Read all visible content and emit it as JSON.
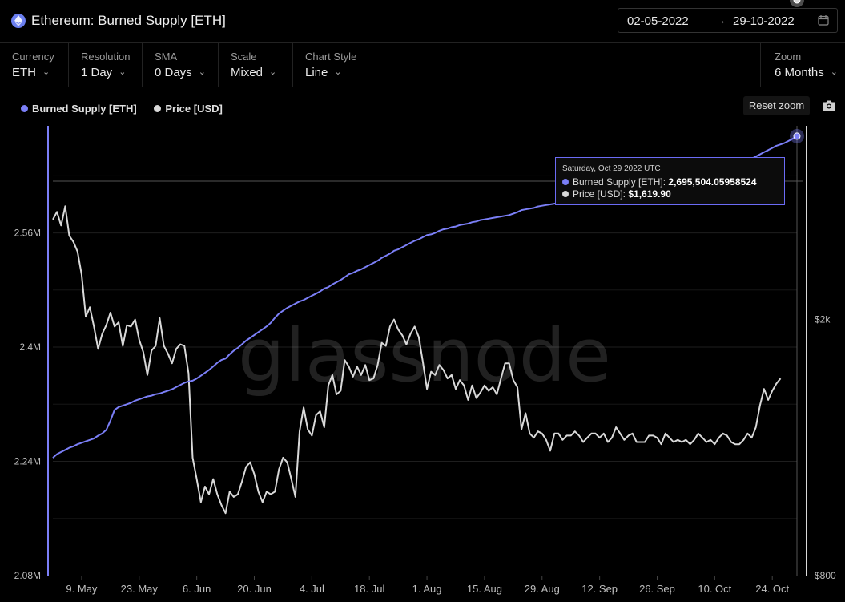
{
  "header": {
    "title": "Ethereum: Burned Supply [ETH]",
    "date_from": "02-05-2022",
    "date_arrow": "→",
    "date_to": "29-10-2022"
  },
  "controls": [
    {
      "label": "Currency",
      "value": "ETH"
    },
    {
      "label": "Resolution",
      "value": "1 Day"
    },
    {
      "label": "SMA",
      "value": "0 Days"
    },
    {
      "label": "Scale",
      "value": "Mixed"
    },
    {
      "label": "Chart Style",
      "value": "Line"
    }
  ],
  "zoom": {
    "label": "Zoom",
    "value": "6 Months"
  },
  "reset_zoom": "Reset zoom",
  "watermark": "glassnode",
  "tooltip": {
    "date": "Saturday, Oct 29 2022 UTC",
    "row1_label": "Burned Supply [ETH]:",
    "row1_value": "2,695,504.05958524",
    "row2_label": "Price [USD]:",
    "row2_value": "$1,619.90"
  },
  "colors": {
    "burned": "#7b7ff7",
    "price": "#d9d9d9",
    "background": "#000000",
    "grid": "#1e1e1e"
  },
  "chart_data": {
    "type": "line",
    "legend_position": "top-left",
    "grid": true,
    "x_ticks": [
      "9. May",
      "23. May",
      "6. Jun",
      "20. Jun",
      "4. Jul",
      "18. Jul",
      "1. Aug",
      "15. Aug",
      "29. Aug",
      "12. Sep",
      "26. Sep",
      "10. Oct",
      "24. Oct"
    ],
    "y_left": {
      "ticks": [
        "2.08M",
        "2.24M",
        "2.4M",
        "2.56M"
      ],
      "range": [
        2080000,
        2710000
      ]
    },
    "y_right": {
      "ticks": [
        "$800",
        "$2k"
      ],
      "scale": "log",
      "range": [
        800,
        4000
      ]
    },
    "series": [
      {
        "name": "Burned Supply [ETH]",
        "axis": "left",
        "start_date": "2022-05-02",
        "values": [
          2245000,
          2250000,
          2253000,
          2256000,
          2259000,
          2261000,
          2264000,
          2266000,
          2268000,
          2270000,
          2272000,
          2276000,
          2279000,
          2284000,
          2297000,
          2312000,
          2316000,
          2318000,
          2320000,
          2322000,
          2325000,
          2327000,
          2329000,
          2331000,
          2332000,
          2334000,
          2335000,
          2337000,
          2339000,
          2341000,
          2344000,
          2347000,
          2350000,
          2352000,
          2353000,
          2356000,
          2360000,
          2364000,
          2368000,
          2373000,
          2378000,
          2382000,
          2384000,
          2390000,
          2395000,
          2399000,
          2404000,
          2409000,
          2413000,
          2417000,
          2421000,
          2425000,
          2429000,
          2434000,
          2441000,
          2447000,
          2451000,
          2455000,
          2458000,
          2461000,
          2464000,
          2466000,
          2469000,
          2472000,
          2475000,
          2478000,
          2482000,
          2484000,
          2488000,
          2491000,
          2494000,
          2498000,
          2502000,
          2504000,
          2507000,
          2509000,
          2512000,
          2515000,
          2518000,
          2521000,
          2525000,
          2528000,
          2531000,
          2535000,
          2537000,
          2540000,
          2543000,
          2546000,
          2549000,
          2551000,
          2554000,
          2557000,
          2558000,
          2560000,
          2563000,
          2565000,
          2566000,
          2568000,
          2569000,
          2571000,
          2572000,
          2573000,
          2575000,
          2576000,
          2578000,
          2579000,
          2580000,
          2581000,
          2582000,
          2583000,
          2584000,
          2585000,
          2587000,
          2589000,
          2592000,
          2593000,
          2594000,
          2595000,
          2597000,
          2598000,
          2599000,
          2600000,
          2601000,
          2602000,
          2604000,
          2605000,
          2606000,
          2607000,
          2608000,
          2609000,
          2610000,
          2611000,
          2612000,
          2614000,
          2615000,
          2616000,
          2618000,
          2620000,
          2624000,
          2627000,
          2629000,
          2632000,
          2634000,
          2636000,
          2638000,
          2640000,
          2641000,
          2643000,
          2644000,
          2645000,
          2646000,
          2647000,
          2648000,
          2648500,
          2649000,
          2649500,
          2650000,
          2650500,
          2651000,
          2651500,
          2652000,
          2653000,
          2653500,
          2654000,
          2655000,
          2656000,
          2657000,
          2658000,
          2660000,
          2662000,
          2664000,
          2667000,
          2670000,
          2673000,
          2676000,
          2679000,
          2682000,
          2684000,
          2686000,
          2689000,
          2692000,
          2695504
        ]
      },
      {
        "name": "Price [USD]",
        "axis": "right",
        "start_date": "2022-05-02",
        "values": [
          2860,
          2940,
          2800,
          3000,
          2700,
          2640,
          2550,
          2350,
          2020,
          2090,
          1950,
          1800,
          1900,
          1960,
          2050,
          1950,
          1980,
          1820,
          1960,
          1950,
          2000,
          1860,
          1780,
          1640,
          1790,
          1820,
          2010,
          1820,
          1770,
          1710,
          1800,
          1830,
          1820,
          1650,
          1220,
          1130,
          1040,
          1100,
          1070,
          1130,
          1070,
          1030,
          1000,
          1080,
          1060,
          1070,
          1120,
          1180,
          1200,
          1150,
          1080,
          1040,
          1080,
          1070,
          1080,
          1170,
          1220,
          1200,
          1130,
          1060,
          1340,
          1460,
          1350,
          1320,
          1420,
          1440,
          1360,
          1580,
          1640,
          1530,
          1550,
          1730,
          1690,
          1630,
          1690,
          1640,
          1700,
          1610,
          1620,
          1700,
          1840,
          1820,
          1950,
          2000,
          1930,
          1890,
          1830,
          1900,
          1950,
          1880,
          1720,
          1560,
          1660,
          1640,
          1700,
          1670,
          1620,
          1640,
          1560,
          1610,
          1580,
          1500,
          1580,
          1510,
          1540,
          1580,
          1550,
          1570,
          1530,
          1620,
          1710,
          1710,
          1610,
          1570,
          1350,
          1430,
          1330,
          1310,
          1340,
          1330,
          1300,
          1250,
          1330,
          1330,
          1300,
          1320,
          1320,
          1340,
          1320,
          1290,
          1310,
          1330,
          1330,
          1310,
          1330,
          1290,
          1310,
          1360,
          1330,
          1300,
          1320,
          1330,
          1290,
          1290,
          1290,
          1320,
          1320,
          1310,
          1280,
          1330,
          1310,
          1290,
          1300,
          1290,
          1300,
          1280,
          1300,
          1330,
          1310,
          1290,
          1300,
          1280,
          1310,
          1330,
          1320,
          1290,
          1280,
          1280,
          1300,
          1330,
          1310,
          1360,
          1470,
          1560,
          1500,
          1550,
          1590,
          1619.9
        ]
      }
    ]
  }
}
